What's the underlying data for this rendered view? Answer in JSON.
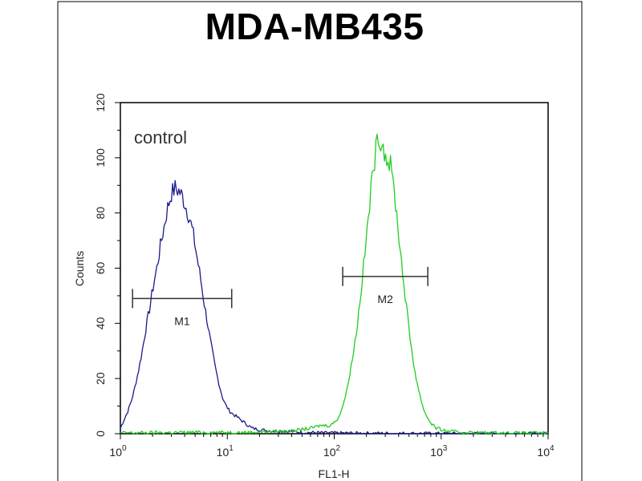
{
  "chart_data": {
    "type": "line",
    "title": "MDA-MB435",
    "xlabel": "FL1-H",
    "ylabel": "Counts",
    "x_scale": "log",
    "xlim": [
      1,
      10000
    ],
    "ylim": [
      0,
      120
    ],
    "x_ticks": [
      {
        "value": 1,
        "base": "10",
        "exp": "0"
      },
      {
        "value": 10,
        "base": "10",
        "exp": "1"
      },
      {
        "value": 100,
        "base": "10",
        "exp": "2"
      },
      {
        "value": 1000,
        "base": "10",
        "exp": "3"
      },
      {
        "value": 10000,
        "base": "10",
        "exp": "4"
      }
    ],
    "y_ticks": [
      "0",
      "20",
      "40",
      "60",
      "80",
      "100",
      "120"
    ],
    "annotation": "control",
    "series": [
      {
        "color": "#1a1a8c",
        "points": [
          [
            1.0,
            2
          ],
          [
            1.08,
            5
          ],
          [
            1.17,
            8
          ],
          [
            1.27,
            12
          ],
          [
            1.37,
            17
          ],
          [
            1.48,
            23
          ],
          [
            1.6,
            30
          ],
          [
            1.73,
            38
          ],
          [
            1.87,
            45
          ],
          [
            2.02,
            53
          ],
          [
            2.19,
            60
          ],
          [
            2.37,
            68
          ],
          [
            2.56,
            75
          ],
          [
            2.77,
            82
          ],
          [
            3.0,
            87
          ],
          [
            3.25,
            89
          ],
          [
            3.52,
            88
          ],
          [
            3.8,
            86
          ],
          [
            4.12,
            82
          ],
          [
            4.45,
            78
          ],
          [
            4.82,
            72
          ],
          [
            5.21,
            64
          ],
          [
            5.64,
            56
          ],
          [
            6.1,
            47
          ],
          [
            6.6,
            39
          ],
          [
            7.14,
            31
          ],
          [
            7.72,
            24
          ],
          [
            8.36,
            18
          ],
          [
            9.04,
            13
          ],
          [
            9.78,
            10
          ],
          [
            10.6,
            8
          ],
          [
            11.4,
            7
          ],
          [
            12.4,
            6
          ],
          [
            13.4,
            5
          ],
          [
            14.5,
            4
          ],
          [
            15.7,
            3
          ],
          [
            17.0,
            2
          ],
          [
            20.0,
            1.5
          ],
          [
            25.0,
            1
          ],
          [
            35.0,
            1
          ],
          [
            50.0,
            0.5
          ],
          [
            80.0,
            0.3
          ],
          [
            150.0,
            0.2
          ],
          [
            400.0,
            0.1
          ],
          [
            10000.0,
            0
          ]
        ]
      },
      {
        "color": "#22cc22",
        "points": [
          [
            1.0,
            0.3
          ],
          [
            5.0,
            0.5
          ],
          [
            15.0,
            0.5
          ],
          [
            40.0,
            1
          ],
          [
            60.0,
            2
          ],
          [
            75.0,
            3
          ],
          [
            90.0,
            3
          ],
          [
            100.0,
            4
          ],
          [
            110.0,
            6
          ],
          [
            120.0,
            10
          ],
          [
            130.0,
            15
          ],
          [
            140.0,
            22
          ],
          [
            152.0,
            30
          ],
          [
            165.0,
            40
          ],
          [
            178.0,
            52
          ],
          [
            193.0,
            65
          ],
          [
            209.0,
            79
          ],
          [
            226.0,
            92
          ],
          [
            245.0,
            103
          ],
          [
            265.0,
            108
          ],
          [
            287.0,
            104
          ],
          [
            310.0,
            100
          ],
          [
            336.0,
            97
          ],
          [
            364.0,
            88
          ],
          [
            394.0,
            75
          ],
          [
            426.0,
            62
          ],
          [
            461.0,
            50
          ],
          [
            499.0,
            38
          ],
          [
            540.0,
            28
          ],
          [
            584.0,
            20
          ],
          [
            632.0,
            14
          ],
          [
            684.0,
            9
          ],
          [
            740.0,
            6
          ],
          [
            800.0,
            4
          ],
          [
            900.0,
            2
          ],
          [
            1100.0,
            1
          ],
          [
            1500.0,
            0.5
          ],
          [
            3000.0,
            0.3
          ],
          [
            10000.0,
            0.2
          ]
        ]
      }
    ],
    "markers": [
      {
        "label": "M1",
        "x_start": 1.3,
        "x_end": 11.0,
        "y": 49
      },
      {
        "label": "M2",
        "x_start": 120.0,
        "x_end": 750.0,
        "y": 57
      }
    ]
  }
}
